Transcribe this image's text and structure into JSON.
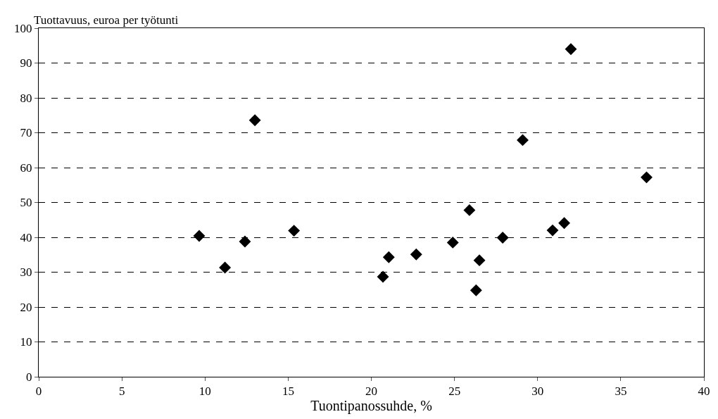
{
  "chart_data": {
    "type": "scatter",
    "xlabel": "Tuontipanossuhde, %",
    "ylabel": "Tuottavuus, euroa per työtunti",
    "x": [
      9.65,
      11.2,
      12.4,
      13.0,
      15.35,
      20.7,
      21.05,
      22.7,
      24.9,
      25.9,
      26.3,
      26.5,
      27.9,
      29.1,
      30.9,
      31.6,
      32.0,
      36.55
    ],
    "series": [
      {
        "color": "#000000",
        "values": [
          40.4,
          31.3,
          38.8,
          73.6,
          41.9,
          28.7,
          34.3,
          35.1,
          38.5,
          47.8,
          24.8,
          33.4,
          39.9,
          67.9,
          42.0,
          44.1,
          94.0,
          57.2
        ]
      }
    ],
    "xlim": [
      0,
      40
    ],
    "xticks": [
      0,
      5,
      10,
      15,
      20,
      25,
      30,
      35,
      40
    ],
    "ylim": [
      0,
      100
    ],
    "yticks": [
      0,
      10,
      20,
      30,
      40,
      50,
      60,
      70,
      80,
      90,
      100
    ],
    "grid": "y",
    "marker": "diamond",
    "legend": false
  }
}
